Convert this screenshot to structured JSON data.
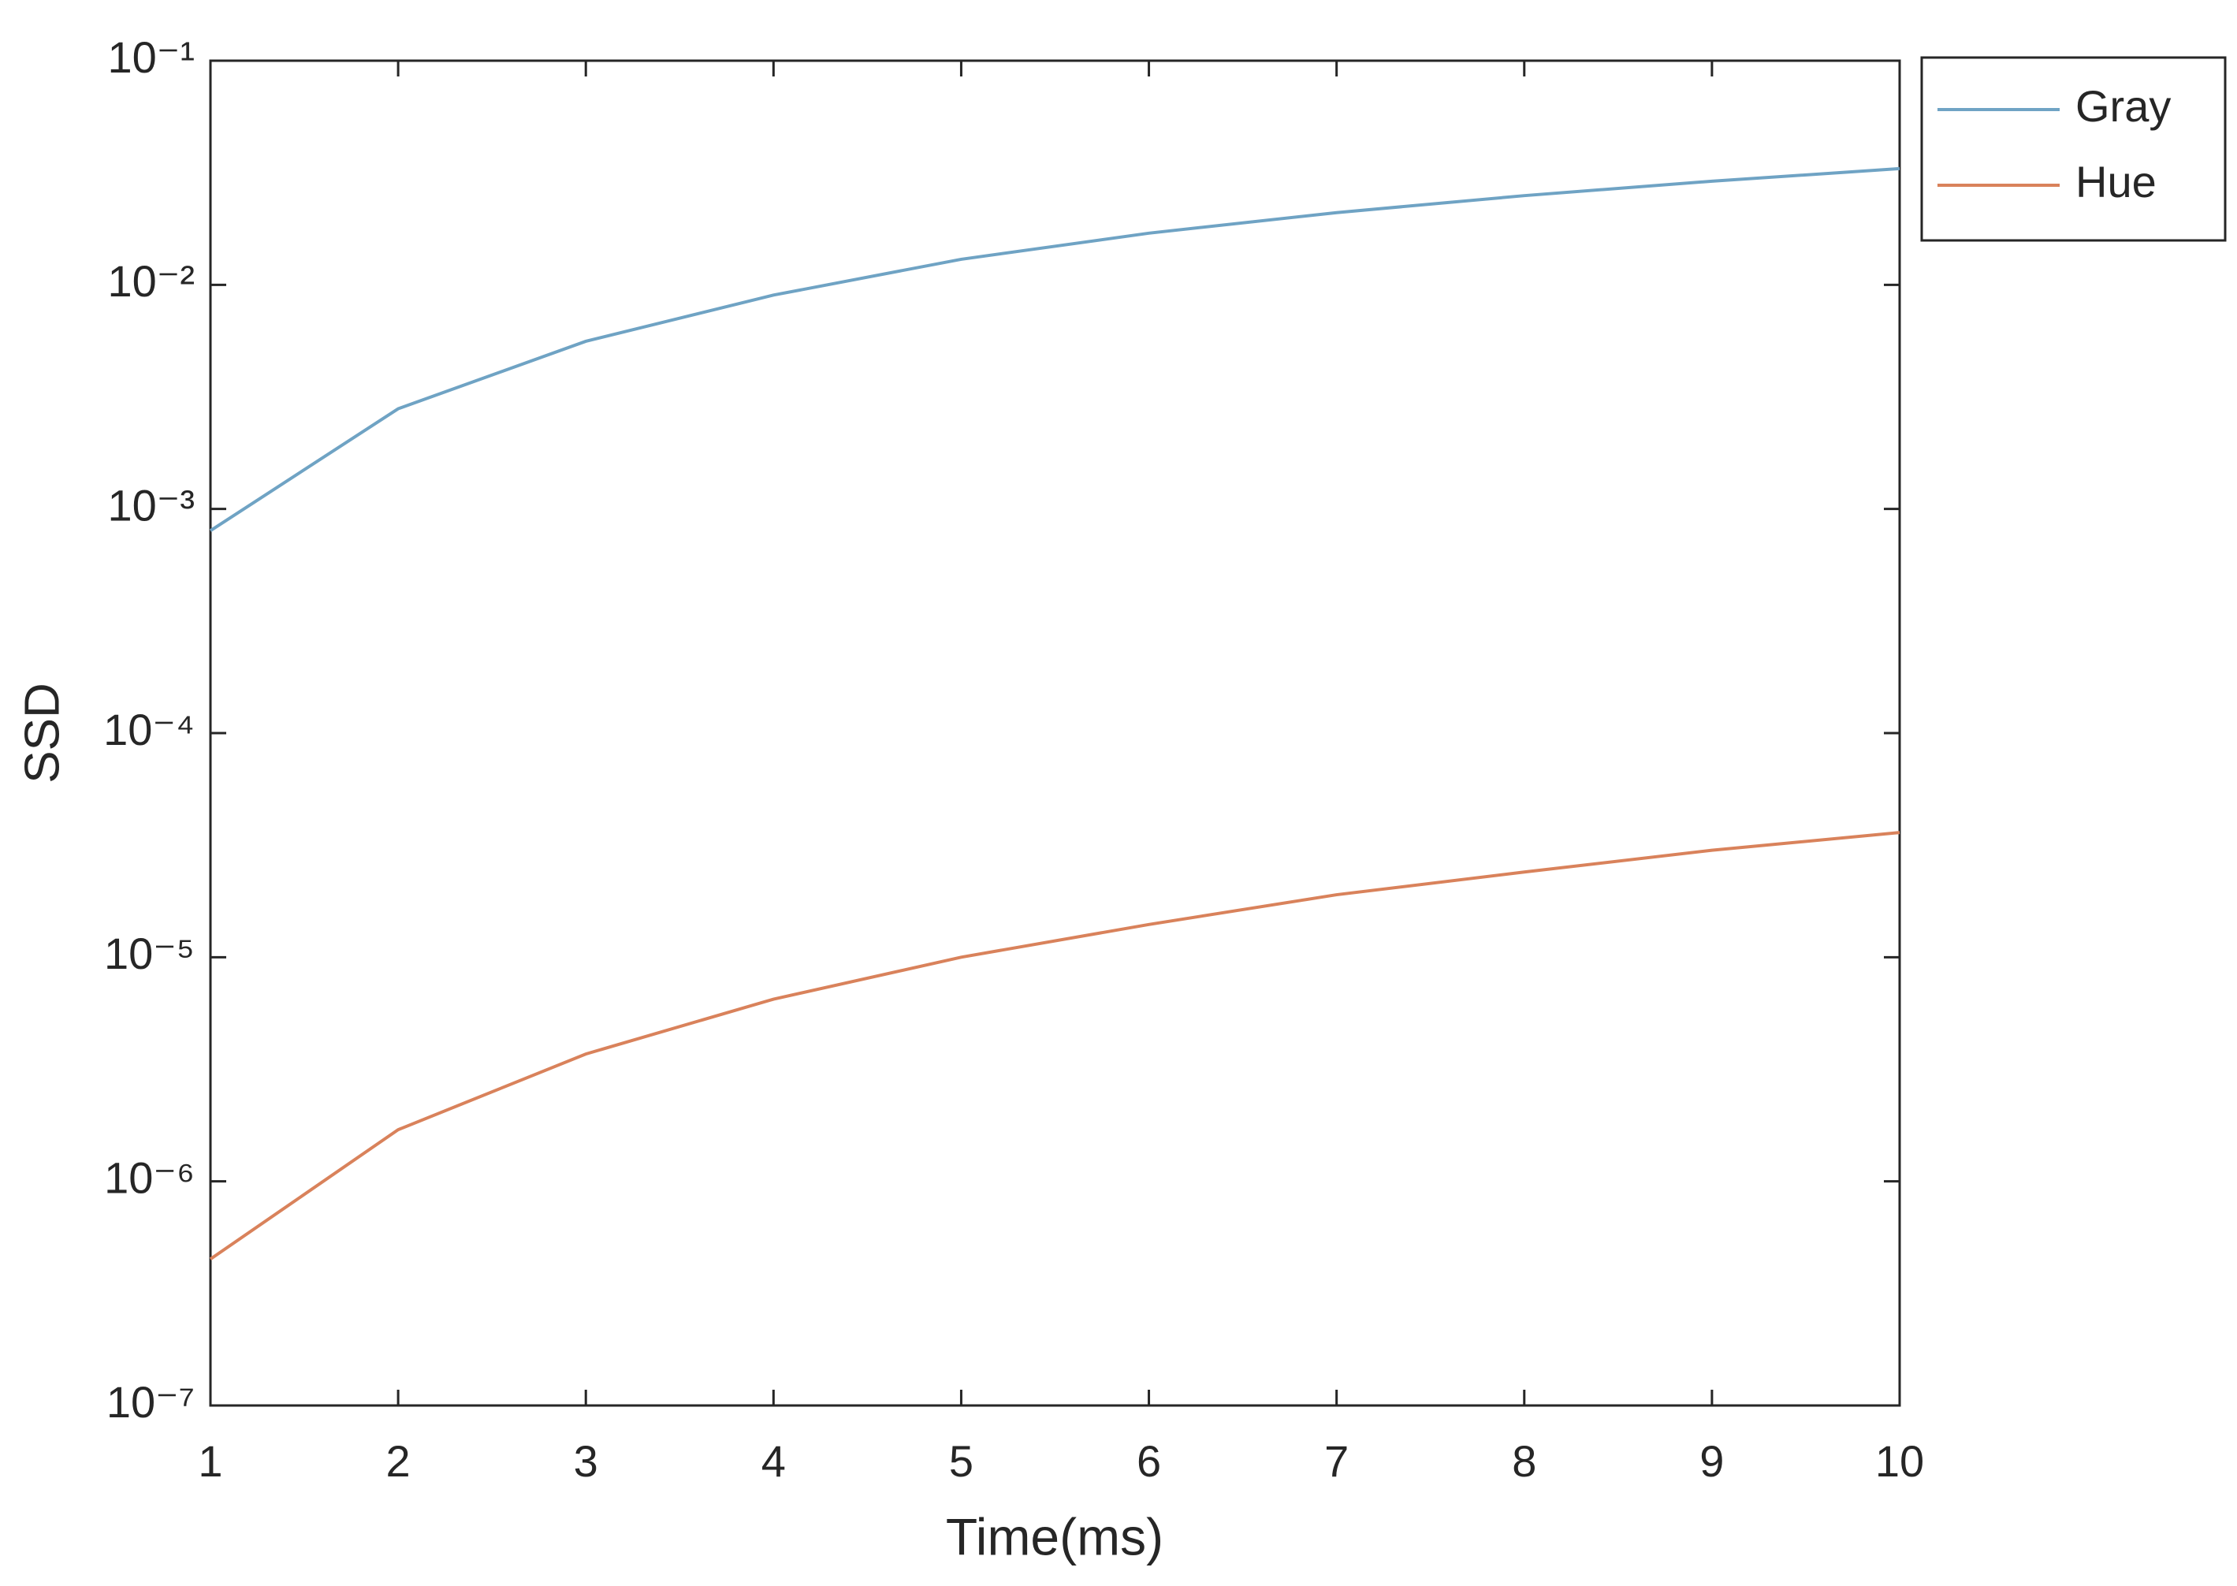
{
  "chart_data": {
    "type": "line",
    "xlabel": "Time(ms)",
    "ylabel": "SSD",
    "x": [
      1,
      2,
      3,
      4,
      5,
      6,
      7,
      8,
      9,
      10
    ],
    "series": [
      {
        "name": "Gray",
        "color": "#6fa3c4",
        "values": [
          0.0008,
          0.0028,
          0.0056,
          0.009,
          0.013,
          0.017,
          0.021,
          0.025,
          0.029,
          0.033
        ]
      },
      {
        "name": "Hue",
        "color": "#d9825b",
        "values": [
          4.5e-07,
          1.7e-06,
          3.7e-06,
          6.5e-06,
          1e-05,
          1.4e-05,
          1.9e-05,
          2.4e-05,
          3e-05,
          3.6e-05
        ]
      }
    ],
    "xlim": [
      1,
      10
    ],
    "xticks": [
      1,
      2,
      3,
      4,
      5,
      6,
      7,
      8,
      9,
      10
    ],
    "ylim": [
      1e-07,
      0.1
    ],
    "yscale": "log",
    "yticks": [
      {
        "value": 1e-07,
        "label": "10⁻⁷"
      },
      {
        "value": 1e-06,
        "label": "10⁻⁶"
      },
      {
        "value": 1e-05,
        "label": "10⁻⁵"
      },
      {
        "value": 0.0001,
        "label": "10⁻⁴"
      },
      {
        "value": 0.001,
        "label": "10⁻³"
      },
      {
        "value": 0.01,
        "label": "10⁻²"
      },
      {
        "value": 0.1,
        "label": "10⁻¹"
      }
    ],
    "legend": "outside-top-right",
    "grid": false
  }
}
